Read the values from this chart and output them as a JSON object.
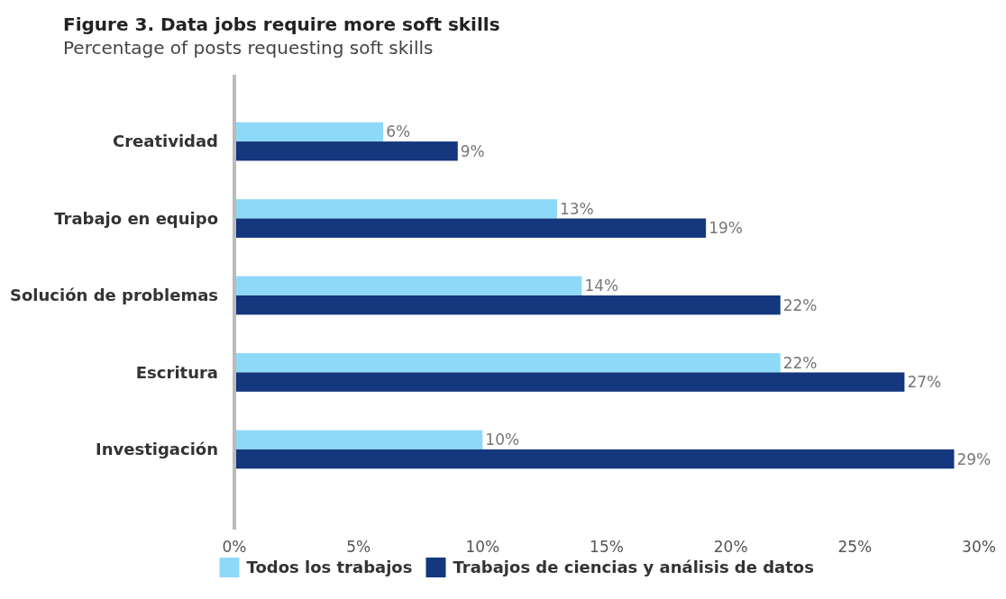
{
  "chart_data": {
    "type": "bar",
    "orientation": "horizontal",
    "title": "Figure 3. Data jobs require more soft skills",
    "subtitle": "Percentage of posts requesting soft skills",
    "categories": [
      "Creatividad",
      "Trabajo en equipo",
      "Solución de problemas",
      "Escritura",
      "Investigación"
    ],
    "series": [
      {
        "name": "Todos los trabajos",
        "color": "#8fd9f8",
        "values": [
          6,
          13,
          14,
          22,
          10
        ],
        "value_labels": [
          "6%",
          "13%",
          "14%",
          "22%",
          "10%"
        ]
      },
      {
        "name": "Trabajos de ciencias y análisis de datos",
        "color": "#14377d",
        "values": [
          9,
          19,
          22,
          27,
          29
        ],
        "value_labels": [
          "9%",
          "19%",
          "22%",
          "27%",
          "29%"
        ]
      }
    ],
    "xlim": [
      0,
      30
    ],
    "xticks": [
      {
        "value": 0,
        "label": "0%"
      },
      {
        "value": 5,
        "label": "5%"
      },
      {
        "value": 10,
        "label": "10%"
      },
      {
        "value": 15,
        "label": "15%"
      },
      {
        "value": 20,
        "label": "20%"
      },
      {
        "value": 25,
        "label": "25%"
      },
      {
        "value": 30,
        "label": "30%"
      }
    ],
    "grid": false,
    "legend": "bottom"
  }
}
